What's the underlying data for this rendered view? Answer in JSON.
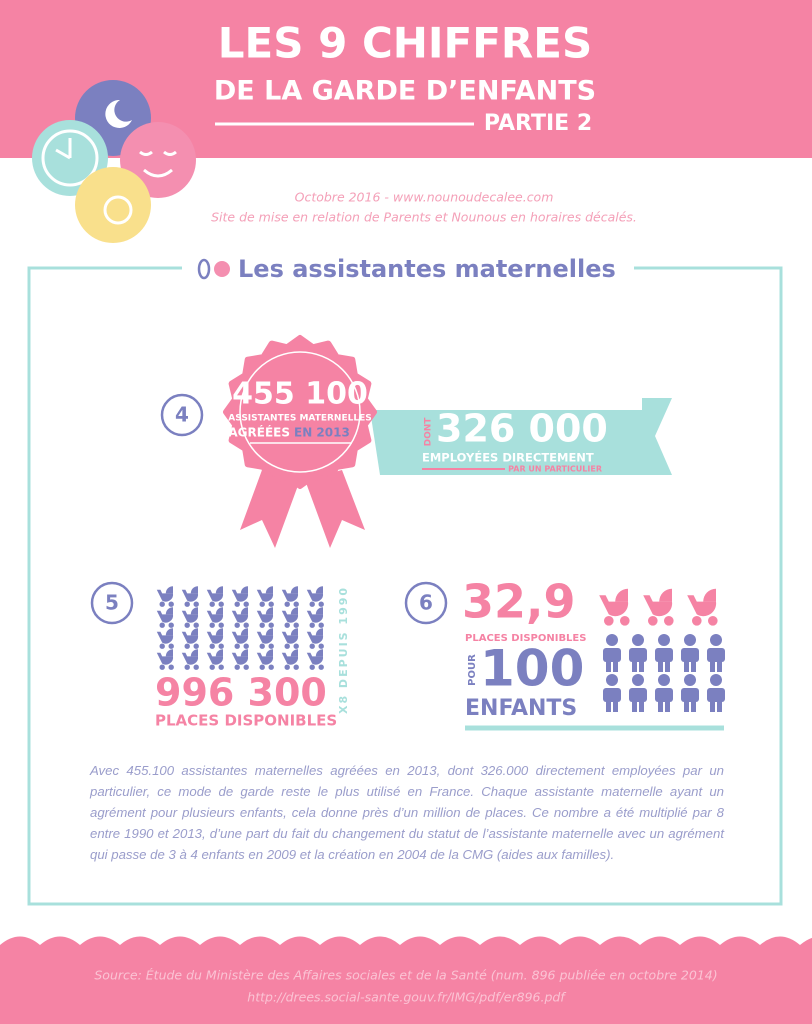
{
  "header": {
    "title_line1": "LES 9 CHIFFRES",
    "title_line2": "DE LA GARDE D’ENFANTS",
    "part": "PARTIE 2"
  },
  "intro": {
    "line1": "Octobre 2016 - www.nounoudecalee.com",
    "line2": "Site de mise en relation de Parents et Nounous en horaires décalés."
  },
  "section": {
    "title": "Les assistantes maternelles"
  },
  "fact4": {
    "number": "4",
    "main": "455 100",
    "line": "ASSISTANTES MATERNELLES",
    "agreed": "AGRÉÉES",
    "year": "EN 2013",
    "ribbon_prefix": "DONT",
    "ribbon_number": "326 000",
    "ribbon_line1": "EMPLOYÉES DIRECTEMENT",
    "ribbon_line2": "PAR UN PARTICULIER"
  },
  "fact5": {
    "number": "5",
    "value": "996 300",
    "label": "PLACES DISPONIBLES",
    "side": "X8 DEPUIS 1990"
  },
  "fact6": {
    "number": "6",
    "value": "32,9",
    "label": "PLACES DISPONIBLES",
    "prefix": "POUR",
    "per": "100",
    "who": "ENFANTS"
  },
  "paragraph": "Avec 455.100 assistantes maternelles agréées en 2013, dont 326.000 directement employées par un particulier, ce mode de garde reste le plus utilisé en France. Chaque assistante maternelle ayant un agrément pour plusieurs enfants, cela donne près d’un million de places. Ce nombre a été multiplié par 8 entre 1990 et 2013, d’une part du fait du changement du statut de l’assistante maternelle avec un agrément qui passe de 3 à 4 enfants en 2009 et la création en 2004 de la CMG (aides aux familles).",
  "footer": {
    "source": "Source: Étude du Ministère des Affaires sociales et de la Santé (num. 896 publiée en octobre 2014)",
    "url": "http://drees.social-sante.gouv.fr/IMG/pdf/er896.pdf"
  }
}
